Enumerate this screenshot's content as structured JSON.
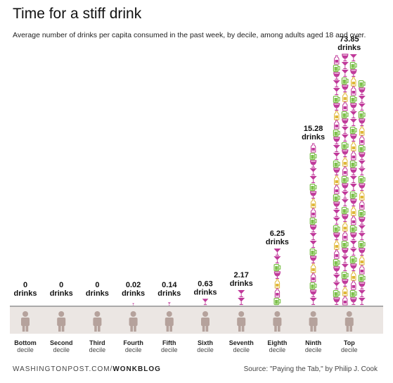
{
  "header": {
    "title": "Time for a stiff drink",
    "subtitle": "Average number of drinks per capita consumed in the past week, by decile, among adults aged 18 and over."
  },
  "footer": {
    "brand": "WASHINGTONPOST.COM/",
    "brand_bold": "WONKBLOG",
    "source": "Source: \"Paying the Tab,\" by Philip J. Cook"
  },
  "colors": {
    "wine": "#c0399a",
    "beer": "#7cc04a",
    "liquor": "#e0b838",
    "person": "#b5a29c",
    "band": "#ebe6e3",
    "axis": "#555555"
  },
  "icons": [
    "wine-glass-icon",
    "beer-mug-icon",
    "bottle-icon",
    "martini-glass-icon",
    "person-icon"
  ],
  "chart_data": {
    "type": "bar",
    "unit_label": "drinks",
    "decile_word": "decile",
    "categories": [
      "Bottom",
      "Second",
      "Third",
      "Fourth",
      "Fifth",
      "Sixth",
      "Seventh",
      "Eighth",
      "Ninth",
      "Top"
    ],
    "values": [
      0,
      0,
      0,
      0.02,
      0.14,
      0.63,
      2.17,
      6.25,
      15.28,
      73.85
    ],
    "value_labels": [
      "0",
      "0",
      "0",
      "0.02",
      "0.14",
      "0.63",
      "2.17",
      "6.25",
      "15.28",
      "73.85"
    ]
  }
}
